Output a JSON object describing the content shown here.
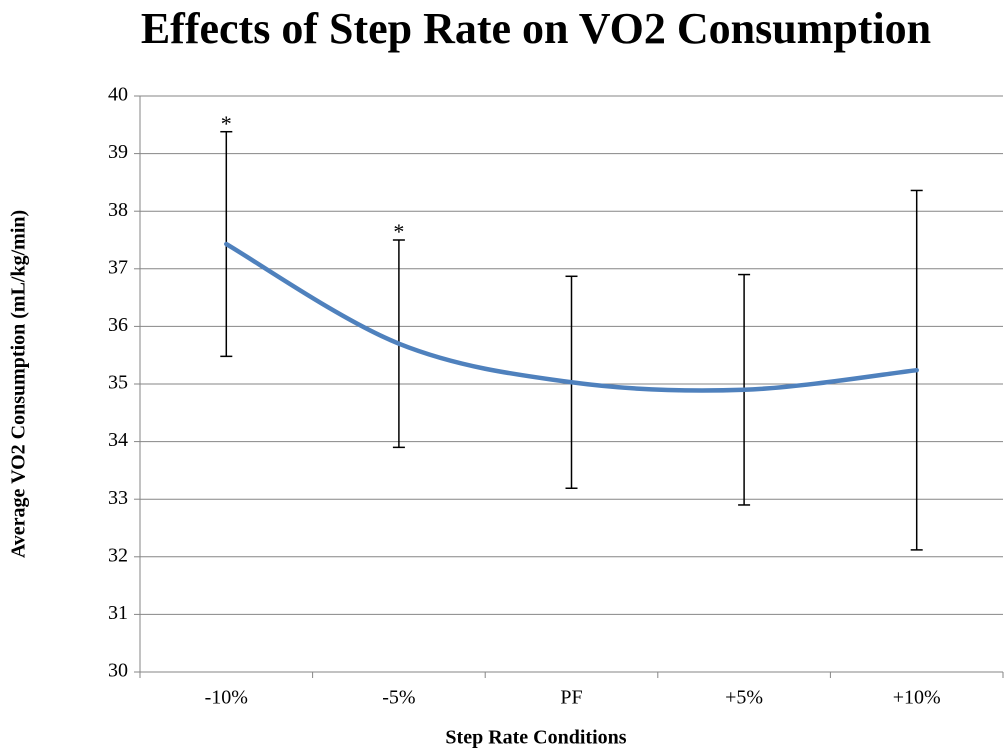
{
  "chart_data": {
    "type": "line",
    "title": "Effects of Step Rate on VO2 Consumption",
    "x_label": "Step Rate Conditions",
    "y_label": "Average VO2 Consumption (mL/kg/min)",
    "categories": [
      "-10%",
      "-5%",
      "PF",
      "+5%",
      "+10%"
    ],
    "series": [
      {
        "name": "Average VO2 Consumption",
        "color": "#4f81bd",
        "values": [
          37.43,
          35.7,
          35.03,
          34.9,
          35.24
        ],
        "errors": [
          1.95,
          1.8,
          1.84,
          2.0,
          3.12
        ]
      }
    ],
    "value_annotations": [
      "*",
      "*",
      null,
      null,
      null
    ],
    "ylim": [
      30,
      40
    ],
    "yticks": [
      30,
      31,
      32,
      33,
      34,
      35,
      36,
      37,
      38,
      39,
      40
    ],
    "grid": true,
    "smooth": true,
    "legend": false
  }
}
